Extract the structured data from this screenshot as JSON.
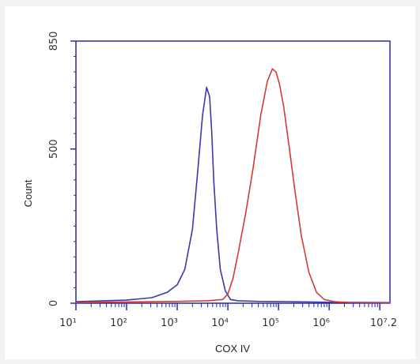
{
  "chart_data": {
    "type": "line",
    "title": "",
    "xlabel": "COX IV",
    "ylabel": "Count",
    "x_scale": "log",
    "xlim": [
      1,
      7.2
    ],
    "ylim": [
      0,
      850
    ],
    "x_ticks": [
      1,
      2,
      3,
      4,
      5,
      6,
      7
    ],
    "x_tick_labels": [
      "10¹",
      "10²",
      "10³",
      "10⁴",
      "10⁵",
      "10⁶",
      "10⁷.2"
    ],
    "y_ticks": [
      0,
      500,
      850
    ],
    "y_tick_labels": [
      "0",
      "500",
      "850"
    ],
    "grid": false,
    "legend": "none",
    "series": [
      {
        "color": "#3a3aa8",
        "x": [
          1.0,
          2.0,
          2.5,
          2.8,
          3.0,
          3.15,
          3.3,
          3.4,
          3.5,
          3.58,
          3.64,
          3.68,
          3.72,
          3.78,
          3.85,
          3.95,
          4.05,
          4.2,
          4.6,
          5.2,
          6.0,
          7.2
        ],
        "y": [
          5,
          10,
          18,
          35,
          60,
          110,
          240,
          420,
          610,
          700,
          670,
          560,
          400,
          240,
          110,
          40,
          12,
          8,
          6,
          5,
          3,
          2
        ]
      },
      {
        "color": "#d23a3a",
        "x": [
          1.0,
          2.0,
          3.0,
          3.6,
          3.9,
          4.0,
          4.1,
          4.2,
          4.35,
          4.5,
          4.65,
          4.78,
          4.88,
          4.95,
          5.02,
          5.1,
          5.2,
          5.32,
          5.45,
          5.6,
          5.75,
          5.9,
          6.1,
          6.4,
          7.2
        ],
        "y": [
          2,
          4,
          6,
          8,
          12,
          30,
          80,
          160,
          290,
          440,
          610,
          720,
          760,
          750,
          710,
          640,
          520,
          370,
          220,
          100,
          35,
          12,
          5,
          2,
          1
        ]
      }
    ]
  }
}
